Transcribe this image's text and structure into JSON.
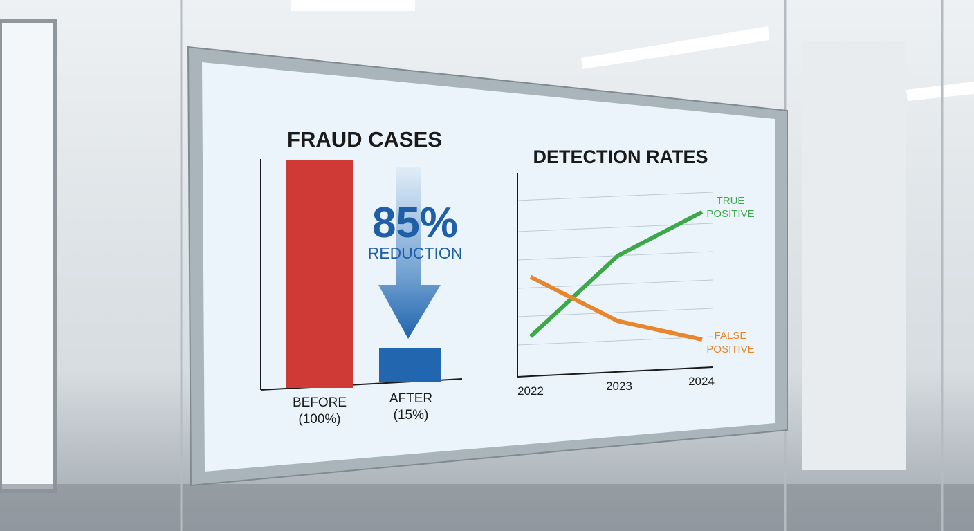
{
  "colors": {
    "before_bar": "#d03a36",
    "after_bar": "#2266b0",
    "arrow": "#2a6fb8",
    "true_positive": "#3da84a",
    "false_positive": "#e8862e",
    "axis": "#1a1a1a",
    "screen_bg": "#eaf4fa"
  },
  "chart_data": [
    {
      "type": "bar",
      "title": "FRAUD CASES",
      "categories": [
        "BEFORE",
        "AFTER"
      ],
      "category_labels": [
        "(100%)",
        "(15%)"
      ],
      "values": [
        100,
        15
      ],
      "ylim": [
        0,
        100
      ],
      "annotation": {
        "value": "85%",
        "label": "REDUCTION",
        "icon": "arrow-down-icon"
      }
    },
    {
      "type": "line",
      "title": "DETECTION RATES",
      "x": [
        "2022",
        "2023",
        "2024"
      ],
      "grid": true,
      "ylim": [
        0,
        6
      ],
      "series": [
        {
          "name": "TRUE POSITIVE",
          "name_lines": [
            "TRUE",
            "POSITIVE"
          ],
          "values": [
            1.3,
            4.0,
            5.4
          ]
        },
        {
          "name": "FALSE POSITIVE",
          "name_lines": [
            "FALSE",
            "POSITIVE"
          ],
          "values": [
            3.4,
            1.7,
            0.9
          ]
        }
      ]
    }
  ]
}
